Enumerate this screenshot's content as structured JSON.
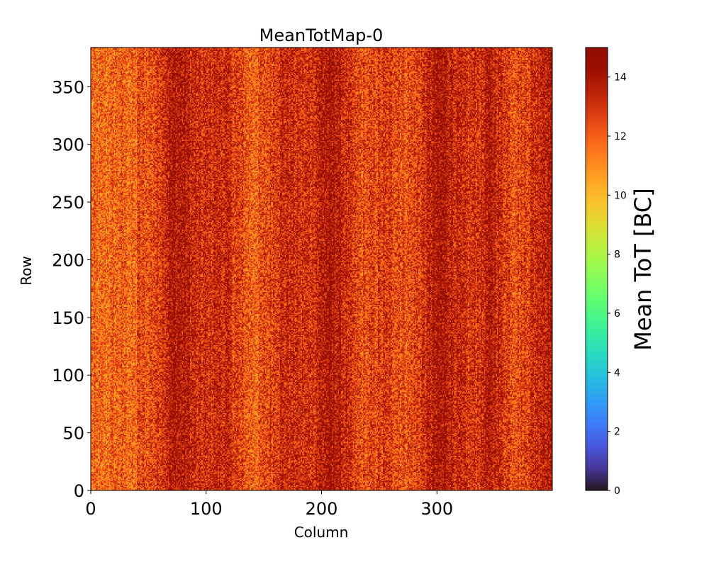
{
  "chart_data": {
    "type": "heatmap",
    "title": "MeanTotMap-0",
    "xlabel": "Column",
    "ylabel": "Row",
    "xlim": [
      0,
      400
    ],
    "ylim": [
      0,
      384
    ],
    "x_ticks": [
      0,
      100,
      200,
      300
    ],
    "y_ticks": [
      0,
      50,
      100,
      150,
      200,
      250,
      300,
      350
    ],
    "colorbar": {
      "label": "Mean ToT [BC]",
      "range": [
        0,
        15
      ],
      "ticks": [
        0,
        2,
        4,
        6,
        8,
        10,
        12,
        14
      ],
      "colormap": "turbo"
    },
    "value_summary": {
      "typical_range": [
        10,
        15
      ],
      "mean": 13
    },
    "grid": false
  }
}
